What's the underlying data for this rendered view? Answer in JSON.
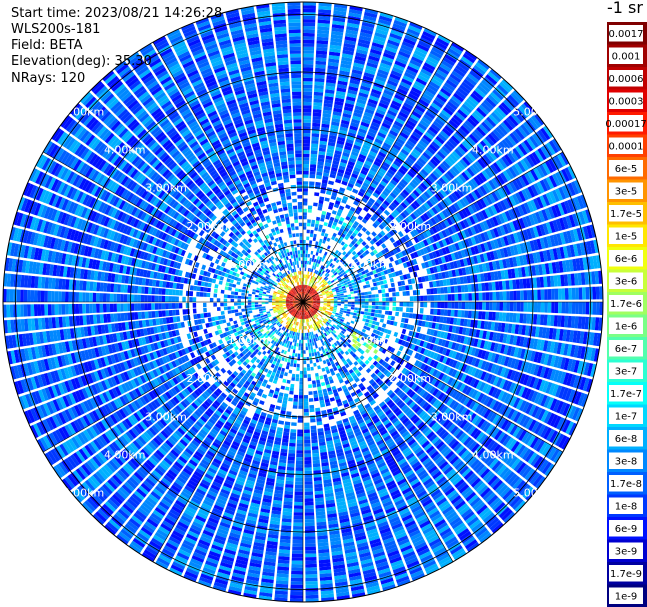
{
  "header": {
    "start_time": "Start time: 2023/08/21 14:26:28",
    "device": "WLS200s-181",
    "field": "Field: BETA",
    "elevation": "Elevation(deg): 35.30",
    "nrays": "NRays: 120"
  },
  "colorbar": {
    "title": "-1 sr",
    "ticks": [
      "0.0017",
      "0.001",
      "0.0006",
      "0.0003",
      "0.00017",
      "0.0001",
      "6e-5",
      "3e-5",
      "1.7e-5",
      "1e-5",
      "6e-6",
      "3e-6",
      "1.7e-6",
      "1e-6",
      "6e-7",
      "3e-7",
      "1.7e-7",
      "1e-7",
      "6e-8",
      "3e-8",
      "1.7e-8",
      "1e-8",
      "6e-9",
      "3e-9",
      "1.7e-9",
      "1e-9"
    ],
    "colors": [
      "#7f0000",
      "#a00000",
      "#c00000",
      "#e00000",
      "#ff1a00",
      "#ff4000",
      "#ff6a00",
      "#ff9400",
      "#ffbe00",
      "#ffe600",
      "#f0ff10",
      "#c8ff3a",
      "#a0ff60",
      "#7aff86",
      "#52ffad",
      "#2cffd3",
      "#06fff8",
      "#00d8ff",
      "#00b0ff",
      "#0088ff",
      "#0060ff",
      "#0038ff",
      "#0010ff",
      "#0000d0",
      "#0000a0",
      "#000080"
    ]
  },
  "chart_data": {
    "type": "heatmap",
    "projection": "polar (PPI)",
    "field": "BETA",
    "units": "-1 sr",
    "elevation_deg": 35.3,
    "n_rays": 120,
    "range_rings_km": [
      1,
      2,
      3,
      4,
      5
    ],
    "range_ring_labels": [
      "1.00km",
      "2.00km",
      "3.00km",
      "4.00km",
      "5.00km"
    ],
    "scale": "log",
    "value_range": [
      1e-09,
      0.0017
    ],
    "features": [
      {
        "description": "near-range strong return ring",
        "range_km": [
          0.1,
          0.6
        ],
        "value_approx": 0.0003
      },
      {
        "description": "scattered moderate returns",
        "range_km": [
          0.6,
          1.6
        ],
        "value_approx": 1e-06
      },
      {
        "description": "background",
        "range_km": [
          1.6,
          5.5
        ],
        "value_approx": 3e-08
      }
    ]
  }
}
